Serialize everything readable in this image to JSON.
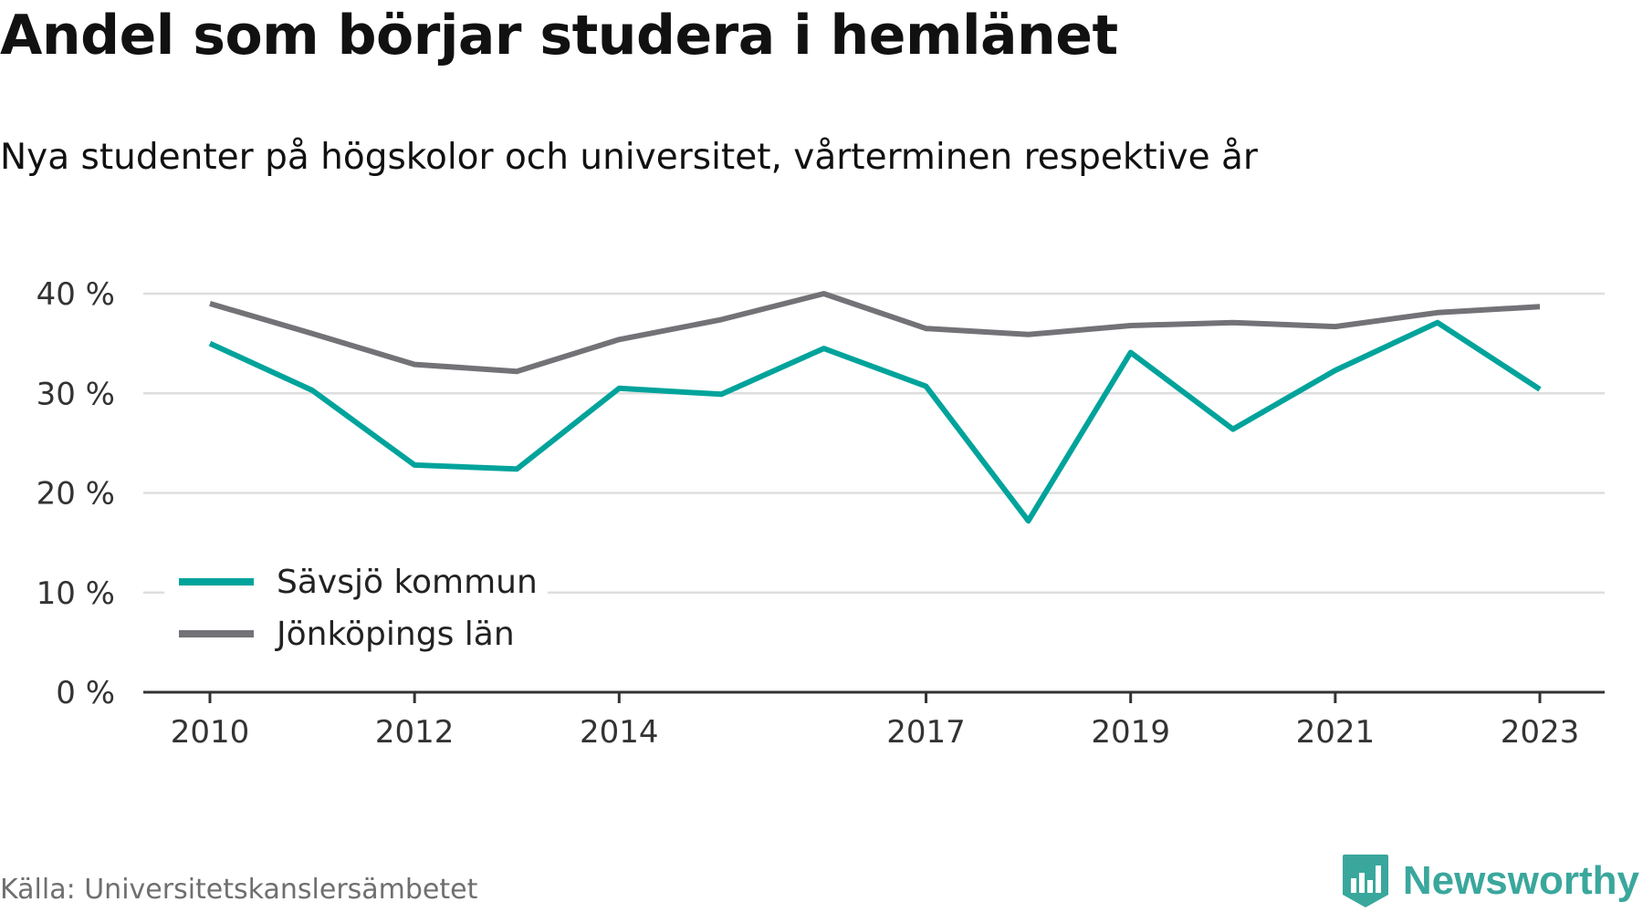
{
  "title": "Andel som börjar studera i hemlänet",
  "subtitle": "Nya studenter på högskolor och universitet, vårterminen respektive år",
  "source": "Källa: Universitetskanslersämbetet",
  "brand": {
    "name": "Newsworthy",
    "icon": "newsworthy-logo-icon",
    "color": "#3aa79c"
  },
  "chart_data": {
    "type": "line",
    "title": "Andel som börjar studera i hemlänet",
    "subtitle": "Nya studenter på högskolor och universitet, vårterminen respektive år",
    "x": [
      2010,
      2011,
      2012,
      2013,
      2014,
      2015,
      2016,
      2017,
      2018,
      2019,
      2020,
      2021,
      2022,
      2023
    ],
    "x_tick_labels": [
      "2010",
      "2012",
      "2014",
      "2017",
      "2019",
      "2021",
      "2023"
    ],
    "y_tick_labels": [
      "0 %",
      "10 %",
      "20 %",
      "30 %",
      "40 %"
    ],
    "ylim": [
      0,
      40
    ],
    "y_unit": "%",
    "grid": true,
    "legend_position": "bottom-left",
    "series": [
      {
        "name": "Sävsjö kommun",
        "color": "#00a39b",
        "values": [
          35.0,
          30.3,
          22.8,
          22.4,
          30.5,
          29.9,
          34.5,
          30.7,
          17.2,
          34.1,
          26.4,
          32.3,
          37.1,
          30.4
        ]
      },
      {
        "name": "Jönköpings län",
        "color": "#737277",
        "values": [
          39.0,
          36.0,
          32.9,
          32.2,
          35.4,
          37.4,
          40.0,
          36.5,
          35.9,
          36.8,
          37.1,
          36.7,
          38.1,
          38.7
        ]
      }
    ]
  }
}
